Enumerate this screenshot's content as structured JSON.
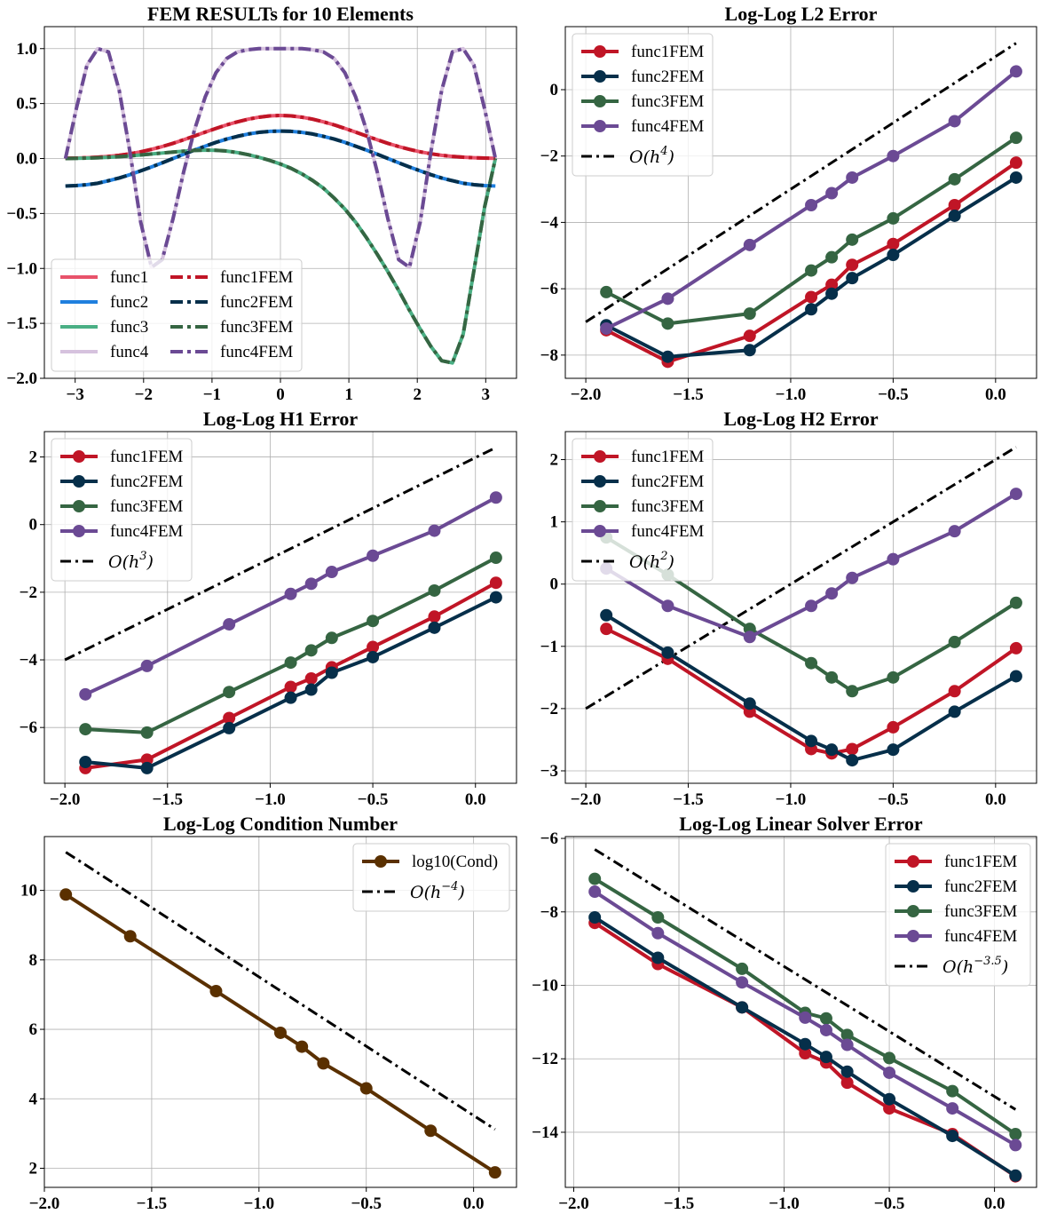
{
  "colors": {
    "func1FEM": "#c01526",
    "func2FEM": "#062f4a",
    "func3FEM": "#356542",
    "func4FEM": "#6b4a94",
    "func1": "#e8526a",
    "func2": "#1f7fde",
    "func3": "#4aaf84",
    "func4": "#d6c2de",
    "cond": "#5a3000",
    "ref": "#000000"
  },
  "chart_data": [
    {
      "type": "line",
      "title": "FEM  RESULTs  for 10 Elements",
      "xlim": [
        -3.45,
        3.45
      ],
      "ylim": [
        -2.0,
        1.2
      ],
      "xticks": [
        -3,
        -2,
        -1,
        0,
        1,
        2,
        3
      ],
      "xtick_labels": [
        "−3",
        "−2",
        "−1",
        "0",
        "1",
        "2",
        "3"
      ],
      "yticks": [
        1.0,
        0.5,
        0.0,
        -0.5,
        -1.0,
        -1.5,
        -2.0
      ],
      "ytick_labels": [
        "1.0",
        "0.5",
        "0.0",
        "−0.5",
        "−1.0",
        "−1.5",
        "−2.0"
      ],
      "grid": true,
      "legend_position": "lower-left",
      "x": [
        -3.1416,
        -2.9845,
        -2.8274,
        -2.6704,
        -2.5133,
        -2.3562,
        -2.1991,
        -2.042,
        -1.885,
        -1.7279,
        -1.5708,
        -1.4137,
        -1.2566,
        -1.0996,
        -0.9425,
        -0.7854,
        -0.6283,
        -0.4712,
        -0.3142,
        -0.1571,
        0.0,
        0.1571,
        0.3142,
        0.4712,
        0.6283,
        0.7854,
        0.9425,
        1.0996,
        1.2566,
        1.4137,
        1.5708,
        1.7279,
        1.885,
        2.042,
        2.1991,
        2.3562,
        2.5133,
        2.6704,
        2.8274,
        2.9845,
        3.1416
      ],
      "series": [
        {
          "name": "func1",
          "style": "solid",
          "color_key": "func1",
          "values": [
            0.002,
            0.004,
            0.007,
            0.012,
            0.019,
            0.029,
            0.043,
            0.061,
            0.083,
            0.109,
            0.138,
            0.171,
            0.205,
            0.24,
            0.274,
            0.306,
            0.334,
            0.358,
            0.376,
            0.388,
            0.392,
            0.388,
            0.376,
            0.358,
            0.334,
            0.306,
            0.274,
            0.24,
            0.205,
            0.171,
            0.138,
            0.109,
            0.083,
            0.061,
            0.043,
            0.029,
            0.019,
            0.012,
            0.007,
            0.004,
            0.002
          ]
        },
        {
          "name": "func2",
          "style": "solid",
          "color_key": "func2",
          "values": [
            -0.25,
            -0.246,
            -0.238,
            -0.225,
            -0.202,
            -0.177,
            -0.147,
            -0.112,
            -0.077,
            -0.039,
            0.0,
            0.039,
            0.077,
            0.112,
            0.147,
            0.177,
            0.202,
            0.223,
            0.238,
            0.247,
            0.25,
            0.247,
            0.238,
            0.223,
            0.202,
            0.177,
            0.147,
            0.112,
            0.077,
            0.039,
            0.0,
            -0.039,
            -0.077,
            -0.112,
            -0.147,
            -0.177,
            -0.202,
            -0.225,
            -0.238,
            -0.246,
            -0.25
          ]
        },
        {
          "name": "func3",
          "style": "solid",
          "color_key": "func3",
          "values": [
            0.0,
            0.002,
            0.004,
            0.007,
            0.011,
            0.017,
            0.024,
            0.032,
            0.041,
            0.05,
            0.059,
            0.067,
            0.074,
            0.077,
            0.075,
            0.068,
            0.054,
            0.035,
            0.011,
            -0.017,
            -0.05,
            -0.09,
            -0.14,
            -0.2,
            -0.27,
            -0.36,
            -0.46,
            -0.58,
            -0.72,
            -0.87,
            -1.03,
            -1.2,
            -1.38,
            -1.55,
            -1.71,
            -1.84,
            -1.86,
            -1.6,
            -1.02,
            -0.44,
            0.0
          ]
        },
        {
          "name": "func4",
          "style": "solid",
          "color_key": "func4",
          "values": [
            0.0,
            0.45,
            0.85,
            1.0,
            0.97,
            0.62,
            0.06,
            -0.58,
            -0.99,
            -0.92,
            -0.55,
            -0.12,
            0.26,
            0.56,
            0.78,
            0.91,
            0.97,
            0.99,
            1.0,
            1.0,
            1.0,
            1.0,
            1.0,
            0.99,
            0.97,
            0.91,
            0.78,
            0.56,
            0.26,
            -0.12,
            -0.55,
            -0.92,
            -0.99,
            -0.58,
            0.06,
            0.62,
            0.97,
            1.0,
            0.85,
            0.45,
            0.0
          ]
        },
        {
          "name": "func1FEM",
          "style": "dashdot",
          "color_key": "func1FEM",
          "values": [
            0.002,
            0.004,
            0.007,
            0.012,
            0.019,
            0.029,
            0.043,
            0.061,
            0.083,
            0.109,
            0.138,
            0.171,
            0.205,
            0.24,
            0.274,
            0.306,
            0.334,
            0.358,
            0.376,
            0.388,
            0.392,
            0.388,
            0.376,
            0.358,
            0.334,
            0.306,
            0.274,
            0.24,
            0.205,
            0.171,
            0.138,
            0.109,
            0.083,
            0.061,
            0.043,
            0.029,
            0.019,
            0.012,
            0.007,
            0.004,
            0.002
          ]
        },
        {
          "name": "func2FEM",
          "style": "dashdot",
          "color_key": "func2FEM",
          "values": [
            -0.25,
            -0.246,
            -0.238,
            -0.225,
            -0.202,
            -0.177,
            -0.147,
            -0.112,
            -0.077,
            -0.039,
            0.0,
            0.039,
            0.077,
            0.112,
            0.147,
            0.177,
            0.202,
            0.223,
            0.238,
            0.247,
            0.25,
            0.247,
            0.238,
            0.223,
            0.202,
            0.177,
            0.147,
            0.112,
            0.077,
            0.039,
            0.0,
            -0.039,
            -0.077,
            -0.112,
            -0.147,
            -0.177,
            -0.202,
            -0.225,
            -0.238,
            -0.246,
            -0.25
          ]
        },
        {
          "name": "func3FEM",
          "style": "dashdot",
          "color_key": "func3FEM",
          "values": [
            0.0,
            0.002,
            0.004,
            0.007,
            0.011,
            0.017,
            0.024,
            0.032,
            0.041,
            0.05,
            0.059,
            0.067,
            0.074,
            0.077,
            0.075,
            0.068,
            0.054,
            0.035,
            0.011,
            -0.017,
            -0.05,
            -0.09,
            -0.14,
            -0.2,
            -0.27,
            -0.36,
            -0.46,
            -0.58,
            -0.72,
            -0.87,
            -1.03,
            -1.2,
            -1.38,
            -1.55,
            -1.71,
            -1.84,
            -1.86,
            -1.6,
            -1.02,
            -0.44,
            0.0
          ]
        },
        {
          "name": "func4FEM",
          "style": "dashdot",
          "color_key": "func4FEM",
          "values": [
            0.0,
            0.45,
            0.85,
            1.0,
            0.97,
            0.62,
            0.06,
            -0.58,
            -0.99,
            -0.92,
            -0.55,
            -0.12,
            0.26,
            0.56,
            0.78,
            0.91,
            0.97,
            0.99,
            1.0,
            1.0,
            1.0,
            1.0,
            1.0,
            0.99,
            0.97,
            0.91,
            0.78,
            0.56,
            0.26,
            -0.12,
            -0.55,
            -0.92,
            -0.99,
            -0.58,
            0.06,
            0.62,
            0.97,
            1.0,
            0.85,
            0.45,
            0.0
          ]
        }
      ]
    },
    {
      "type": "line",
      "title": "Log-Log L2 Error",
      "xlim": [
        -2.1,
        0.2
      ],
      "ylim": [
        -8.7,
        1.9
      ],
      "xticks": [
        -2.0,
        -1.5,
        -1.0,
        -0.5,
        0.0
      ],
      "xtick_labels": [
        "−2.0",
        "−1.5",
        "−1.0",
        "−0.5",
        "0.0"
      ],
      "yticks": [
        0,
        -2,
        -4,
        -6,
        -8
      ],
      "ytick_labels": [
        "0",
        "−2",
        "−4",
        "−6",
        "−8"
      ],
      "grid": true,
      "legend_position": "top-left",
      "x": [
        -1.9,
        -1.6,
        -1.2,
        -0.9,
        -0.8,
        -0.7,
        -0.5,
        -0.2,
        0.1
      ],
      "series": [
        {
          "name": "func1FEM",
          "color_key": "func1FEM",
          "values": [
            -7.25,
            -8.2,
            -7.42,
            -6.25,
            -5.88,
            -5.28,
            -4.65,
            -3.48,
            -2.2
          ]
        },
        {
          "name": "func2FEM",
          "color_key": "func2FEM",
          "values": [
            -7.1,
            -8.05,
            -7.85,
            -6.62,
            -6.15,
            -5.68,
            -4.98,
            -3.8,
            -2.65
          ]
        },
        {
          "name": "func3FEM",
          "color_key": "func3FEM",
          "values": [
            -6.1,
            -7.05,
            -6.75,
            -5.45,
            -5.05,
            -4.52,
            -3.88,
            -2.7,
            -1.45
          ]
        },
        {
          "name": "func4FEM",
          "color_key": "func4FEM",
          "values": [
            -7.2,
            -6.3,
            -4.68,
            -3.48,
            -3.12,
            -2.65,
            -2.0,
            -0.95,
            0.55
          ]
        }
      ],
      "reference": {
        "name": "O(h^4)",
        "label_main": "O(h",
        "label_exp": "4",
        "label_end": ")",
        "x": [
          -2.0,
          0.1
        ],
        "values": [
          -7.0,
          1.4
        ]
      }
    },
    {
      "type": "line",
      "title": "Log-Log H1 Error",
      "xlim": [
        -2.1,
        0.2
      ],
      "ylim": [
        -7.65,
        2.75
      ],
      "xticks": [
        -2.0,
        -1.5,
        -1.0,
        -0.5,
        0.0
      ],
      "xtick_labels": [
        "−2.0",
        "−1.5",
        "−1.0",
        "−0.5",
        "0.0"
      ],
      "yticks": [
        2,
        0,
        -2,
        -4,
        -6
      ],
      "ytick_labels": [
        "2",
        "0",
        "−2",
        "−4",
        "−6"
      ],
      "grid": true,
      "legend_position": "top-left",
      "x": [
        -1.9,
        -1.6,
        -1.2,
        -0.9,
        -0.8,
        -0.7,
        -0.5,
        -0.2,
        0.1
      ],
      "series": [
        {
          "name": "func1FEM",
          "color_key": "func1FEM",
          "values": [
            -7.2,
            -6.95,
            -5.72,
            -4.8,
            -4.55,
            -4.22,
            -3.62,
            -2.72,
            -1.72
          ]
        },
        {
          "name": "func2FEM",
          "color_key": "func2FEM",
          "values": [
            -7.02,
            -7.2,
            -6.02,
            -5.12,
            -4.88,
            -4.38,
            -3.92,
            -3.05,
            -2.15
          ]
        },
        {
          "name": "func3FEM",
          "color_key": "func3FEM",
          "values": [
            -6.05,
            -6.15,
            -4.95,
            -4.08,
            -3.72,
            -3.35,
            -2.85,
            -1.95,
            -0.98
          ]
        },
        {
          "name": "func4FEM",
          "color_key": "func4FEM",
          "values": [
            -5.02,
            -4.18,
            -2.95,
            -2.05,
            -1.75,
            -1.4,
            -0.92,
            -0.18,
            0.8
          ]
        }
      ],
      "reference": {
        "name": "O(h^3)",
        "label_main": "O(h",
        "label_exp": "3",
        "label_end": ")",
        "x": [
          -2.0,
          0.1
        ],
        "values": [
          -4.0,
          2.28
        ]
      }
    },
    {
      "type": "line",
      "title": "Log-Log H2 Error",
      "xlim": [
        -2.1,
        0.2
      ],
      "ylim": [
        -3.2,
        2.45
      ],
      "xticks": [
        -2.0,
        -1.5,
        -1.0,
        -0.5,
        0.0
      ],
      "xtick_labels": [
        "−2.0",
        "−1.5",
        "−1.0",
        "−0.5",
        "0.0"
      ],
      "yticks": [
        2,
        1,
        0,
        -1,
        -2,
        -3
      ],
      "ytick_labels": [
        "2",
        "1",
        "0",
        "−1",
        "−2",
        "−3"
      ],
      "grid": true,
      "legend_position": "top-left",
      "x": [
        -1.9,
        -1.6,
        -1.2,
        -0.9,
        -0.8,
        -0.7,
        -0.5,
        -0.2,
        0.1
      ],
      "series": [
        {
          "name": "func1FEM",
          "color_key": "func1FEM",
          "values": [
            -0.72,
            -1.2,
            -2.05,
            -2.65,
            -2.72,
            -2.65,
            -2.3,
            -1.72,
            -1.03
          ]
        },
        {
          "name": "func2FEM",
          "color_key": "func2FEM",
          "values": [
            -0.5,
            -1.1,
            -1.92,
            -2.52,
            -2.66,
            -2.83,
            -2.66,
            -2.05,
            -1.48
          ]
        },
        {
          "name": "func3FEM",
          "color_key": "func3FEM",
          "values": [
            0.75,
            0.15,
            -0.72,
            -1.27,
            -1.5,
            -1.72,
            -1.5,
            -0.93,
            -0.3
          ]
        },
        {
          "name": "func4FEM",
          "color_key": "func4FEM",
          "values": [
            0.25,
            -0.35,
            -0.85,
            -0.35,
            -0.15,
            0.1,
            0.4,
            0.85,
            1.45
          ]
        }
      ],
      "reference": {
        "name": "O(h^2)",
        "label_main": "O(h",
        "label_exp": "2",
        "label_end": ")",
        "x": [
          -2.0,
          0.1
        ],
        "values": [
          -2.0,
          2.2
        ]
      }
    },
    {
      "type": "line",
      "title": "Log-Log Condition Number",
      "xlim": [
        -2.0,
        0.2
      ],
      "ylim": [
        1.45,
        11.55
      ],
      "xticks": [
        -2.0,
        -1.5,
        -1.0,
        -0.5,
        0.0
      ],
      "xtick_labels": [
        "−2.0",
        "−1.5",
        "−1.0",
        "−0.5",
        "0.0"
      ],
      "yticks": [
        10,
        8,
        6,
        4,
        2
      ],
      "ytick_labels": [
        "10",
        "8",
        "6",
        "4",
        "2"
      ],
      "grid": true,
      "legend_position": "top-right",
      "x": [
        -1.9,
        -1.6,
        -1.2,
        -0.9,
        -0.8,
        -0.7,
        -0.5,
        -0.2,
        0.1
      ],
      "series": [
        {
          "name": "log10(Cond)",
          "color_key": "cond",
          "values": [
            9.88,
            8.68,
            7.1,
            5.9,
            5.5,
            5.02,
            4.3,
            3.08,
            1.88
          ]
        }
      ],
      "reference": {
        "name": "O(h^-4)",
        "label_main": "O(h",
        "label_exp": "−4",
        "label_end": ")",
        "x": [
          -1.9,
          0.1
        ],
        "values": [
          11.1,
          3.12
        ]
      }
    },
    {
      "type": "line",
      "title": "Log-Log Linear Solver Error",
      "xlim": [
        -2.04,
        0.2
      ],
      "ylim": [
        -15.5,
        -5.95
      ],
      "xticks": [
        -2.0,
        -1.5,
        -1.0,
        -0.5,
        0.0
      ],
      "xtick_labels": [
        "−2.0",
        "−1.5",
        "−1.0",
        "−0.5",
        "0.0"
      ],
      "yticks": [
        -6,
        -8,
        -10,
        -12,
        -14
      ],
      "ytick_labels": [
        "−6",
        "−8",
        "−10",
        "−12",
        "−14"
      ],
      "grid": true,
      "legend_position": "top-right",
      "x": [
        -1.9,
        -1.6,
        -1.2,
        -0.9,
        -0.8,
        -0.7,
        -0.5,
        -0.2,
        0.1
      ],
      "series": [
        {
          "name": "func1FEM",
          "color_key": "func1FEM",
          "values": [
            -8.3,
            -9.42,
            -10.6,
            -11.85,
            -12.1,
            -12.65,
            -13.35,
            -14.05,
            -15.2
          ]
        },
        {
          "name": "func2FEM",
          "color_key": "func2FEM",
          "values": [
            -8.15,
            -9.25,
            -10.6,
            -11.6,
            -11.95,
            -12.35,
            -13.1,
            -14.1,
            -15.18
          ]
        },
        {
          "name": "func3FEM",
          "color_key": "func3FEM",
          "values": [
            -7.1,
            -8.15,
            -9.55,
            -10.75,
            -10.9,
            -11.35,
            -11.98,
            -12.88,
            -14.05
          ]
        },
        {
          "name": "func4FEM",
          "color_key": "func4FEM",
          "values": [
            -7.45,
            -8.58,
            -9.92,
            -10.88,
            -11.22,
            -11.62,
            -12.38,
            -13.35,
            -14.35
          ]
        }
      ],
      "reference": {
        "name": "O(h^-3.5)",
        "label_main": "O(h",
        "label_exp": "−3.5",
        "label_end": ")",
        "x": [
          -1.9,
          0.1
        ],
        "values": [
          -6.3,
          -13.38
        ]
      }
    }
  ]
}
